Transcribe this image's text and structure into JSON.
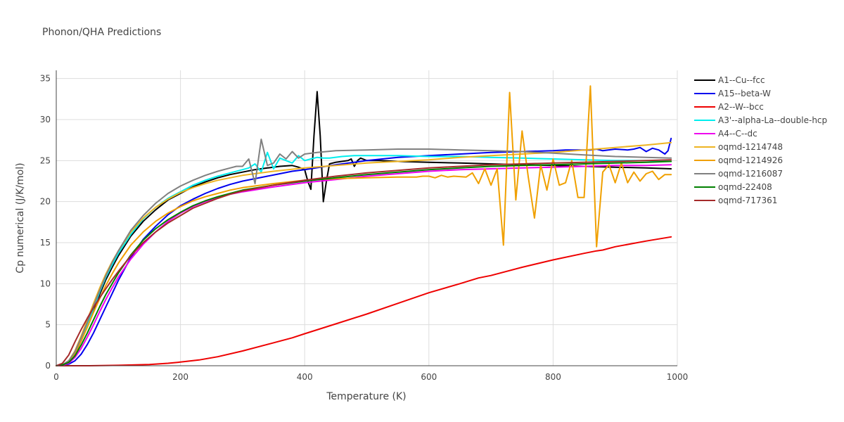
{
  "chart_data": {
    "type": "line",
    "title": "Phonon/QHA Predictions",
    "xlabel": "Temperature (K)",
    "ylabel": "Cp numerical (J/K/mol)",
    "xlim": [
      0,
      1000
    ],
    "ylim": [
      0,
      36
    ],
    "x_ticks": [
      0,
      200,
      400,
      600,
      800,
      1000
    ],
    "y_ticks": [
      0,
      5,
      10,
      15,
      20,
      25,
      30,
      35
    ],
    "grid": true,
    "legend_position": "right",
    "series": [
      {
        "name": "A1--Cu--fcc",
        "color": "#000000",
        "x": [
          0,
          10,
          20,
          30,
          40,
          50,
          60,
          70,
          80,
          90,
          100,
          120,
          140,
          160,
          180,
          200,
          220,
          240,
          260,
          280,
          300,
          320,
          340,
          360,
          380,
          390,
          400,
          405,
          410,
          415,
          420,
          425,
          430,
          435,
          440,
          450,
          460,
          470,
          475,
          480,
          485,
          490,
          500,
          520,
          550,
          600,
          650,
          700,
          750,
          800,
          850,
          900,
          950,
          990
        ],
        "y": [
          0,
          0.1,
          0.4,
          1.4,
          3.0,
          4.8,
          6.8,
          8.7,
          10.5,
          12.0,
          13.4,
          15.8,
          17.6,
          19.0,
          20.2,
          21.0,
          21.8,
          22.4,
          22.9,
          23.3,
          23.6,
          23.9,
          24.1,
          24.3,
          24.4,
          24.2,
          23.9,
          22.5,
          21.5,
          28.0,
          33.4,
          28.0,
          20.0,
          22.5,
          24.6,
          24.8,
          24.9,
          25.0,
          25.2,
          24.3,
          25.0,
          25.3,
          25.0,
          25.0,
          24.9,
          24.8,
          24.7,
          24.6,
          24.5,
          24.4,
          24.3,
          24.2,
          24.1,
          24.0
        ]
      },
      {
        "name": "A15--beta-W",
        "color": "#0000ee",
        "x": [
          0,
          10,
          20,
          30,
          40,
          50,
          60,
          70,
          80,
          90,
          100,
          120,
          140,
          160,
          180,
          200,
          220,
          240,
          260,
          280,
          300,
          320,
          340,
          360,
          380,
          400,
          450,
          500,
          550,
          600,
          650,
          700,
          750,
          800,
          820,
          840,
          860,
          870,
          880,
          900,
          920,
          930,
          940,
          950,
          960,
          970,
          980,
          985,
          990
        ],
        "y": [
          0,
          0.05,
          0.2,
          0.6,
          1.4,
          2.6,
          4.0,
          5.6,
          7.2,
          8.8,
          10.4,
          13.2,
          15.4,
          17.0,
          18.4,
          19.5,
          20.3,
          21.0,
          21.6,
          22.1,
          22.5,
          22.8,
          23.1,
          23.4,
          23.7,
          23.9,
          24.5,
          25.0,
          25.4,
          25.6,
          25.8,
          26.0,
          26.1,
          26.2,
          26.3,
          26.3,
          26.3,
          26.4,
          26.2,
          26.4,
          26.3,
          26.4,
          26.6,
          26.1,
          26.5,
          26.3,
          25.8,
          26.2,
          27.7
        ]
      },
      {
        "name": "A2--W--bcc",
        "color": "#ee0000",
        "x": [
          0,
          50,
          100,
          150,
          180,
          200,
          230,
          260,
          300,
          340,
          380,
          400,
          450,
          500,
          550,
          600,
          650,
          680,
          700,
          750,
          800,
          850,
          870,
          880,
          900,
          950,
          990
        ],
        "y": [
          0,
          0,
          0.05,
          0.15,
          0.3,
          0.45,
          0.7,
          1.1,
          1.8,
          2.6,
          3.4,
          3.9,
          5.1,
          6.3,
          7.6,
          8.9,
          10.0,
          10.7,
          11.0,
          12.0,
          12.9,
          13.7,
          14.0,
          14.1,
          14.5,
          15.2,
          15.7
        ]
      },
      {
        "name": "A3'--alpha-La--double-hcp",
        "color": "#00eeee",
        "x": [
          0,
          10,
          20,
          30,
          40,
          50,
          60,
          70,
          80,
          90,
          100,
          120,
          140,
          160,
          180,
          200,
          220,
          240,
          260,
          280,
          300,
          310,
          320,
          330,
          340,
          350,
          360,
          370,
          380,
          390,
          400,
          410,
          420,
          430,
          440,
          460,
          480,
          500,
          550,
          600,
          650,
          700,
          750,
          800,
          850,
          900,
          950,
          990
        ],
        "y": [
          0,
          0.1,
          0.6,
          1.6,
          3.2,
          5.0,
          7.0,
          9.0,
          10.8,
          12.3,
          13.7,
          16.0,
          17.9,
          19.3,
          20.4,
          21.2,
          22.0,
          22.6,
          23.1,
          23.5,
          23.9,
          24.1,
          24.6,
          23.6,
          26.0,
          24.0,
          25.3,
          25.0,
          24.7,
          25.6,
          25.0,
          25.2,
          25.4,
          25.3,
          25.3,
          25.5,
          25.6,
          25.6,
          25.6,
          25.5,
          25.5,
          25.4,
          25.3,
          25.2,
          25.1,
          25.0,
          25.0,
          24.9
        ]
      },
      {
        "name": "A4--C--dc",
        "color": "#ee00ee",
        "x": [
          0,
          10,
          20,
          30,
          40,
          50,
          60,
          70,
          80,
          90,
          100,
          120,
          140,
          160,
          180,
          200,
          220,
          240,
          260,
          280,
          300,
          350,
          400,
          450,
          500,
          550,
          600,
          650,
          700,
          750,
          800,
          850,
          900,
          950,
          990
        ],
        "y": [
          0,
          0.05,
          0.3,
          1.0,
          2.1,
          3.5,
          5.0,
          6.6,
          8.1,
          9.5,
          10.8,
          13.0,
          14.8,
          16.3,
          17.6,
          18.6,
          19.4,
          20.0,
          20.5,
          20.9,
          21.2,
          21.8,
          22.3,
          22.7,
          23.1,
          23.4,
          23.7,
          23.9,
          24.0,
          24.1,
          24.2,
          24.3,
          24.4,
          24.4,
          24.5
        ]
      },
      {
        "name": "oqmd-1214748",
        "color": "#eeb422",
        "x": [
          0,
          10,
          20,
          30,
          40,
          50,
          60,
          70,
          80,
          90,
          100,
          120,
          140,
          160,
          180,
          200,
          220,
          240,
          260,
          280,
          300,
          350,
          400,
          450,
          500,
          550,
          600,
          650,
          700,
          750,
          800,
          850,
          900,
          950,
          990
        ],
        "y": [
          0,
          0.1,
          0.6,
          1.8,
          3.6,
          5.6,
          7.6,
          9.5,
          11.2,
          12.7,
          14.0,
          16.3,
          18.0,
          19.3,
          20.3,
          21.1,
          21.7,
          22.2,
          22.6,
          22.9,
          23.2,
          23.7,
          24.1,
          24.4,
          24.7,
          24.9,
          25.1,
          25.4,
          25.6,
          25.8,
          26.0,
          26.3,
          26.6,
          26.9,
          27.2
        ]
      },
      {
        "name": "oqmd-1214926",
        "color": "#f0a000",
        "x": [
          0,
          10,
          20,
          30,
          40,
          50,
          60,
          70,
          80,
          90,
          100,
          120,
          140,
          160,
          180,
          200,
          220,
          240,
          260,
          280,
          300,
          350,
          400,
          450,
          500,
          550,
          580,
          590,
          600,
          610,
          620,
          630,
          640,
          660,
          670,
          680,
          690,
          700,
          710,
          720,
          730,
          740,
          750,
          760,
          770,
          780,
          790,
          800,
          810,
          820,
          830,
          840,
          850,
          860,
          870,
          880,
          890,
          900,
          910,
          920,
          930,
          940,
          950,
          960,
          970,
          980,
          990
        ],
        "y": [
          0,
          0.1,
          0.5,
          1.5,
          3.0,
          4.7,
          6.5,
          8.2,
          9.8,
          11.2,
          12.5,
          14.7,
          16.3,
          17.6,
          18.6,
          19.4,
          20.1,
          20.6,
          21.0,
          21.4,
          21.7,
          22.2,
          22.6,
          22.8,
          22.9,
          23.0,
          23.0,
          23.1,
          23.1,
          22.9,
          23.2,
          23.0,
          23.1,
          23.0,
          23.5,
          22.2,
          24.0,
          22.0,
          24.0,
          14.7,
          33.3,
          20.2,
          28.6,
          23.0,
          18.0,
          24.5,
          21.4,
          25.2,
          22.0,
          22.3,
          25.0,
          20.5,
          20.5,
          34.1,
          14.5,
          23.6,
          24.5,
          22.3,
          24.7,
          22.3,
          23.6,
          22.5,
          23.4,
          23.7,
          22.7,
          23.3,
          23.3
        ]
      },
      {
        "name": "oqmd-1216087",
        "color": "#808080",
        "x": [
          0,
          10,
          20,
          30,
          40,
          50,
          60,
          70,
          80,
          90,
          100,
          120,
          140,
          160,
          180,
          200,
          220,
          240,
          260,
          280,
          290,
          300,
          310,
          320,
          330,
          340,
          350,
          360,
          370,
          380,
          390,
          400,
          420,
          450,
          500,
          550,
          600,
          650,
          700,
          750,
          800,
          850,
          900,
          950,
          990
        ],
        "y": [
          0,
          0.1,
          0.6,
          1.7,
          3.4,
          5.3,
          7.3,
          9.2,
          11.0,
          12.6,
          14.0,
          16.5,
          18.3,
          19.8,
          21.0,
          21.9,
          22.6,
          23.2,
          23.7,
          24.1,
          24.3,
          24.3,
          25.2,
          22.2,
          27.6,
          24.4,
          24.7,
          25.8,
          25.2,
          26.1,
          25.3,
          25.8,
          26.0,
          26.2,
          26.3,
          26.4,
          26.4,
          26.3,
          26.2,
          26.1,
          25.9,
          25.7,
          25.5,
          25.4,
          25.3
        ]
      },
      {
        "name": "oqmd-22408",
        "color": "#008000",
        "x": [
          0,
          10,
          20,
          30,
          40,
          50,
          60,
          70,
          80,
          90,
          100,
          120,
          140,
          160,
          180,
          200,
          220,
          240,
          260,
          280,
          300,
          350,
          400,
          450,
          500,
          550,
          600,
          650,
          700,
          750,
          800,
          850,
          900,
          950,
          990
        ],
        "y": [
          0,
          0.1,
          0.4,
          1.2,
          2.5,
          4.0,
          5.6,
          7.2,
          8.7,
          10.0,
          11.3,
          13.5,
          15.3,
          16.7,
          17.8,
          18.7,
          19.5,
          20.1,
          20.6,
          21.0,
          21.4,
          22.0,
          22.5,
          22.9,
          23.3,
          23.6,
          23.9,
          24.1,
          24.3,
          24.4,
          24.5,
          24.6,
          24.7,
          24.8,
          24.9
        ]
      },
      {
        "name": "oqmd-717361",
        "color": "#a52a2a",
        "x": [
          0,
          10,
          20,
          30,
          40,
          50,
          60,
          70,
          80,
          90,
          100,
          120,
          140,
          160,
          180,
          200,
          220,
          240,
          260,
          280,
          300,
          350,
          400,
          450,
          500,
          550,
          600,
          650,
          700,
          750,
          800,
          850,
          900,
          950,
          990
        ],
        "y": [
          0,
          0.3,
          1.3,
          2.9,
          4.4,
          5.8,
          7.1,
          8.3,
          9.4,
          10.5,
          11.5,
          13.4,
          15.0,
          16.3,
          17.4,
          18.3,
          19.2,
          19.8,
          20.4,
          20.9,
          21.3,
          22.0,
          22.6,
          23.1,
          23.5,
          23.8,
          24.1,
          24.3,
          24.5,
          24.6,
          24.7,
          24.8,
          24.9,
          25.0,
          25.1
        ]
      }
    ]
  }
}
